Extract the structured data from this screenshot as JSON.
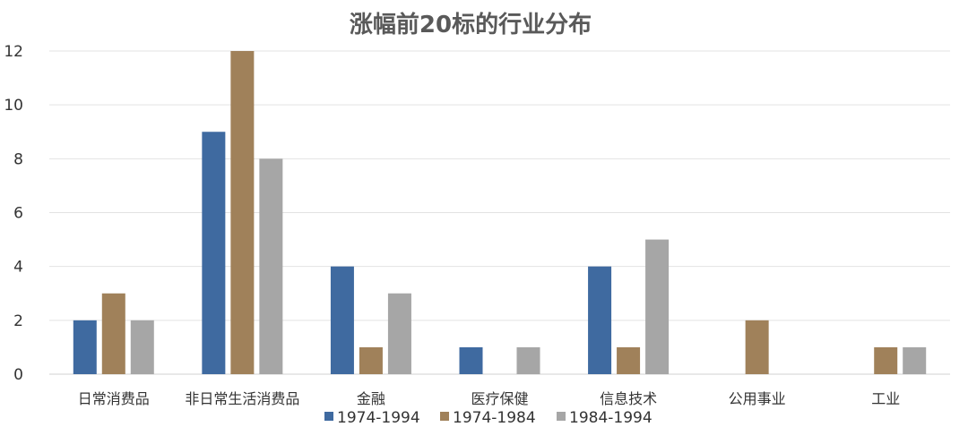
{
  "chart_data": {
    "type": "bar",
    "title": "涨幅前20标的行业分布",
    "categories": [
      "日常消费品",
      "非日常生活消费品",
      "金融",
      "医疗保健",
      "信息技术",
      "公用事业",
      "工业"
    ],
    "series": [
      {
        "name": "1974-1994",
        "color": "#3f6aa0",
        "values": [
          2,
          9,
          4,
          1,
          4,
          null,
          null
        ]
      },
      {
        "name": "1974-1984",
        "color": "#a0815a",
        "values": [
          3,
          12,
          1,
          null,
          1,
          2,
          1
        ]
      },
      {
        "name": "1984-1994",
        "color": "#a6a6a6",
        "values": [
          2,
          8,
          3,
          1,
          5,
          null,
          1
        ]
      }
    ],
    "ylim": [
      0,
      12
    ],
    "yticks": [
      "0",
      "2",
      "4",
      "6",
      "8",
      "10",
      "12"
    ],
    "grid": true,
    "legend": "bottom"
  }
}
